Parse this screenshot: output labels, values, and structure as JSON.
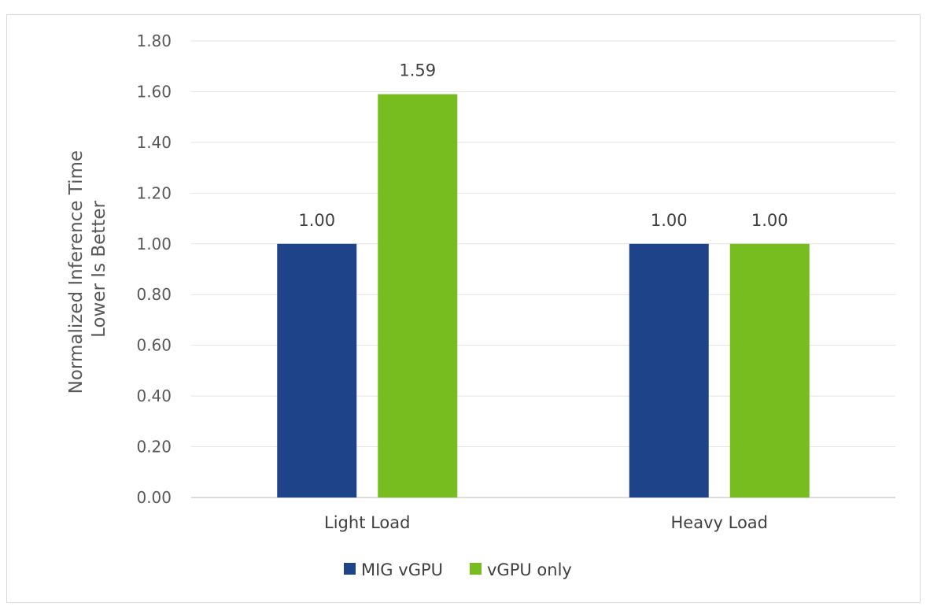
{
  "chart_data": {
    "type": "bar",
    "categories": [
      "Light Load",
      "Heavy Load"
    ],
    "series": [
      {
        "name": "MIG vGPU",
        "values": [
          1.0,
          1.0
        ],
        "color": "#1f4389"
      },
      {
        "name": "vGPU only",
        "values": [
          1.59,
          1.0
        ],
        "color": "#78bd20"
      }
    ],
    "ylabel_lines": [
      "Normalized Inference Time",
      "Lower Is Better"
    ],
    "ylim": [
      0,
      1.8
    ],
    "yticks": [
      "0.00",
      "0.20",
      "0.40",
      "0.60",
      "0.80",
      "1.00",
      "1.20",
      "1.40",
      "1.60",
      "1.80"
    ],
    "data_labels": [
      [
        "1.00",
        "1.00"
      ],
      [
        "1.59",
        "1.00"
      ]
    ],
    "grid": true,
    "legend_position": "bottom"
  }
}
